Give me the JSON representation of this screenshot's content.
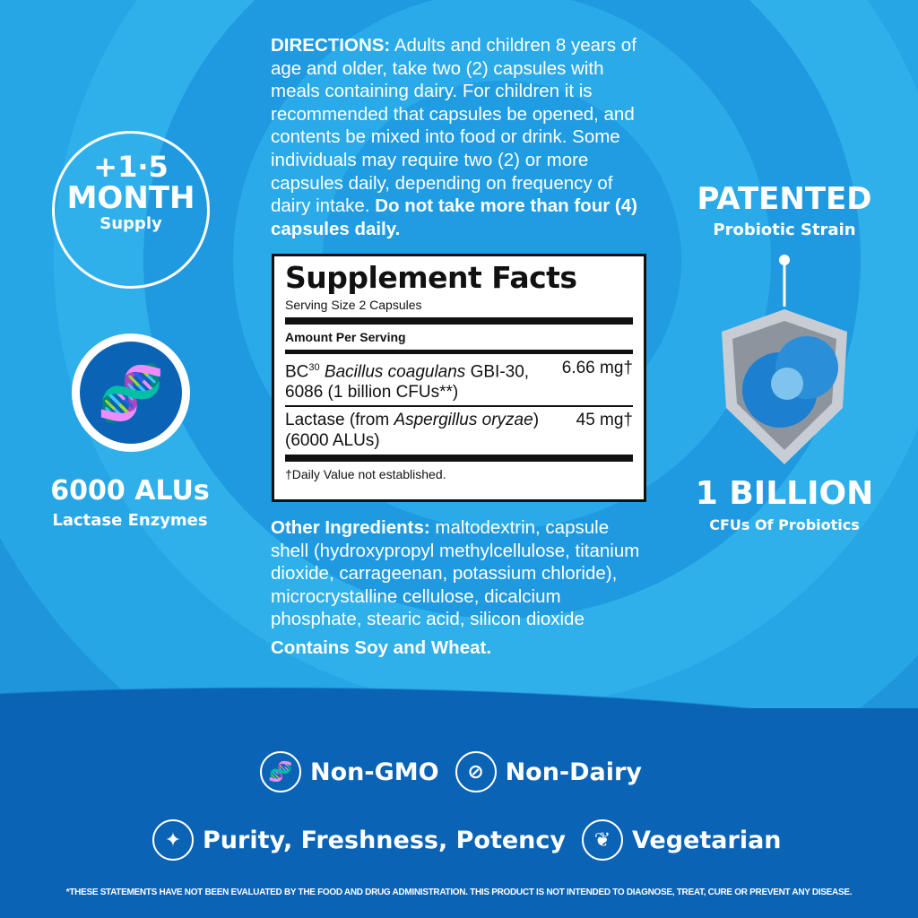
{
  "directions": {
    "label": "DIRECTIONS:",
    "text": " Adults and children 8 years of age and older, take two (2) capsules with meals containing dairy. For children it is recommended that capsules be opened, and contents be mixed into food or drink. Some individuals may require two (2) or more capsules daily, depending on frequency of dairy intake. ",
    "warning": "Do not take more than four (4) capsules daily."
  },
  "supply": {
    "amount": "+1·5",
    "unit": "MONTH",
    "label": "Supply"
  },
  "alus": {
    "value": "6000 ALUs",
    "label": "Lactase Enzymes"
  },
  "patented": {
    "title": "PATENTED",
    "label": "Probiotic Strain"
  },
  "billion": {
    "value": "1 BILLION",
    "label": "CFUs Of Probiotics"
  },
  "facts": {
    "title": "Supplement Facts",
    "serving": "Serving Size 2 Capsules",
    "amount_header": "Amount Per Serving",
    "rows": [
      {
        "pre": "BC",
        "sup": "30",
        "italic": " Bacillus coagulans",
        "rest": " GBI-30, 6086 (1 billion CFUs**)",
        "amount": "6.66 mg†"
      },
      {
        "pre": "Lactase (from ",
        "italic": "Aspergillus oryzae",
        "rest": ") (6000 ALUs)",
        "amount": "45 mg†"
      }
    ],
    "footnote": "†Daily Value not established."
  },
  "other": {
    "label": "Other Ingredients:",
    "text": " maltodextrin, capsule shell (hydroxypropyl methylcellulose, titanium dioxide, carrageenan, potassium chloride), microcrystalline cellulose, dicalcium phosphate, stearic acid, silicon dioxide",
    "allergens": "Contains Soy and Wheat."
  },
  "features": [
    {
      "label": "Non-GMO",
      "icon": "dna-icon"
    },
    {
      "label": "Non-Dairy",
      "icon": "no-milk-icon"
    },
    {
      "label": "Purity, Freshness, Potency",
      "icon": "sparkle-icon"
    },
    {
      "label": "Vegetarian",
      "icon": "leaf-icon"
    }
  ],
  "disclaimer": "*THESE STATEMENTS HAVE NOT BEEN EVALUATED BY THE FOOD AND DRUG ADMINISTRATION. THIS PRODUCT IS NOT INTENDED TO DIAGNOSE, TREAT, CURE OR PREVENT ANY DISEASE.",
  "colors": {
    "sky": "#27a6e6",
    "dark": "#0a63b4"
  }
}
